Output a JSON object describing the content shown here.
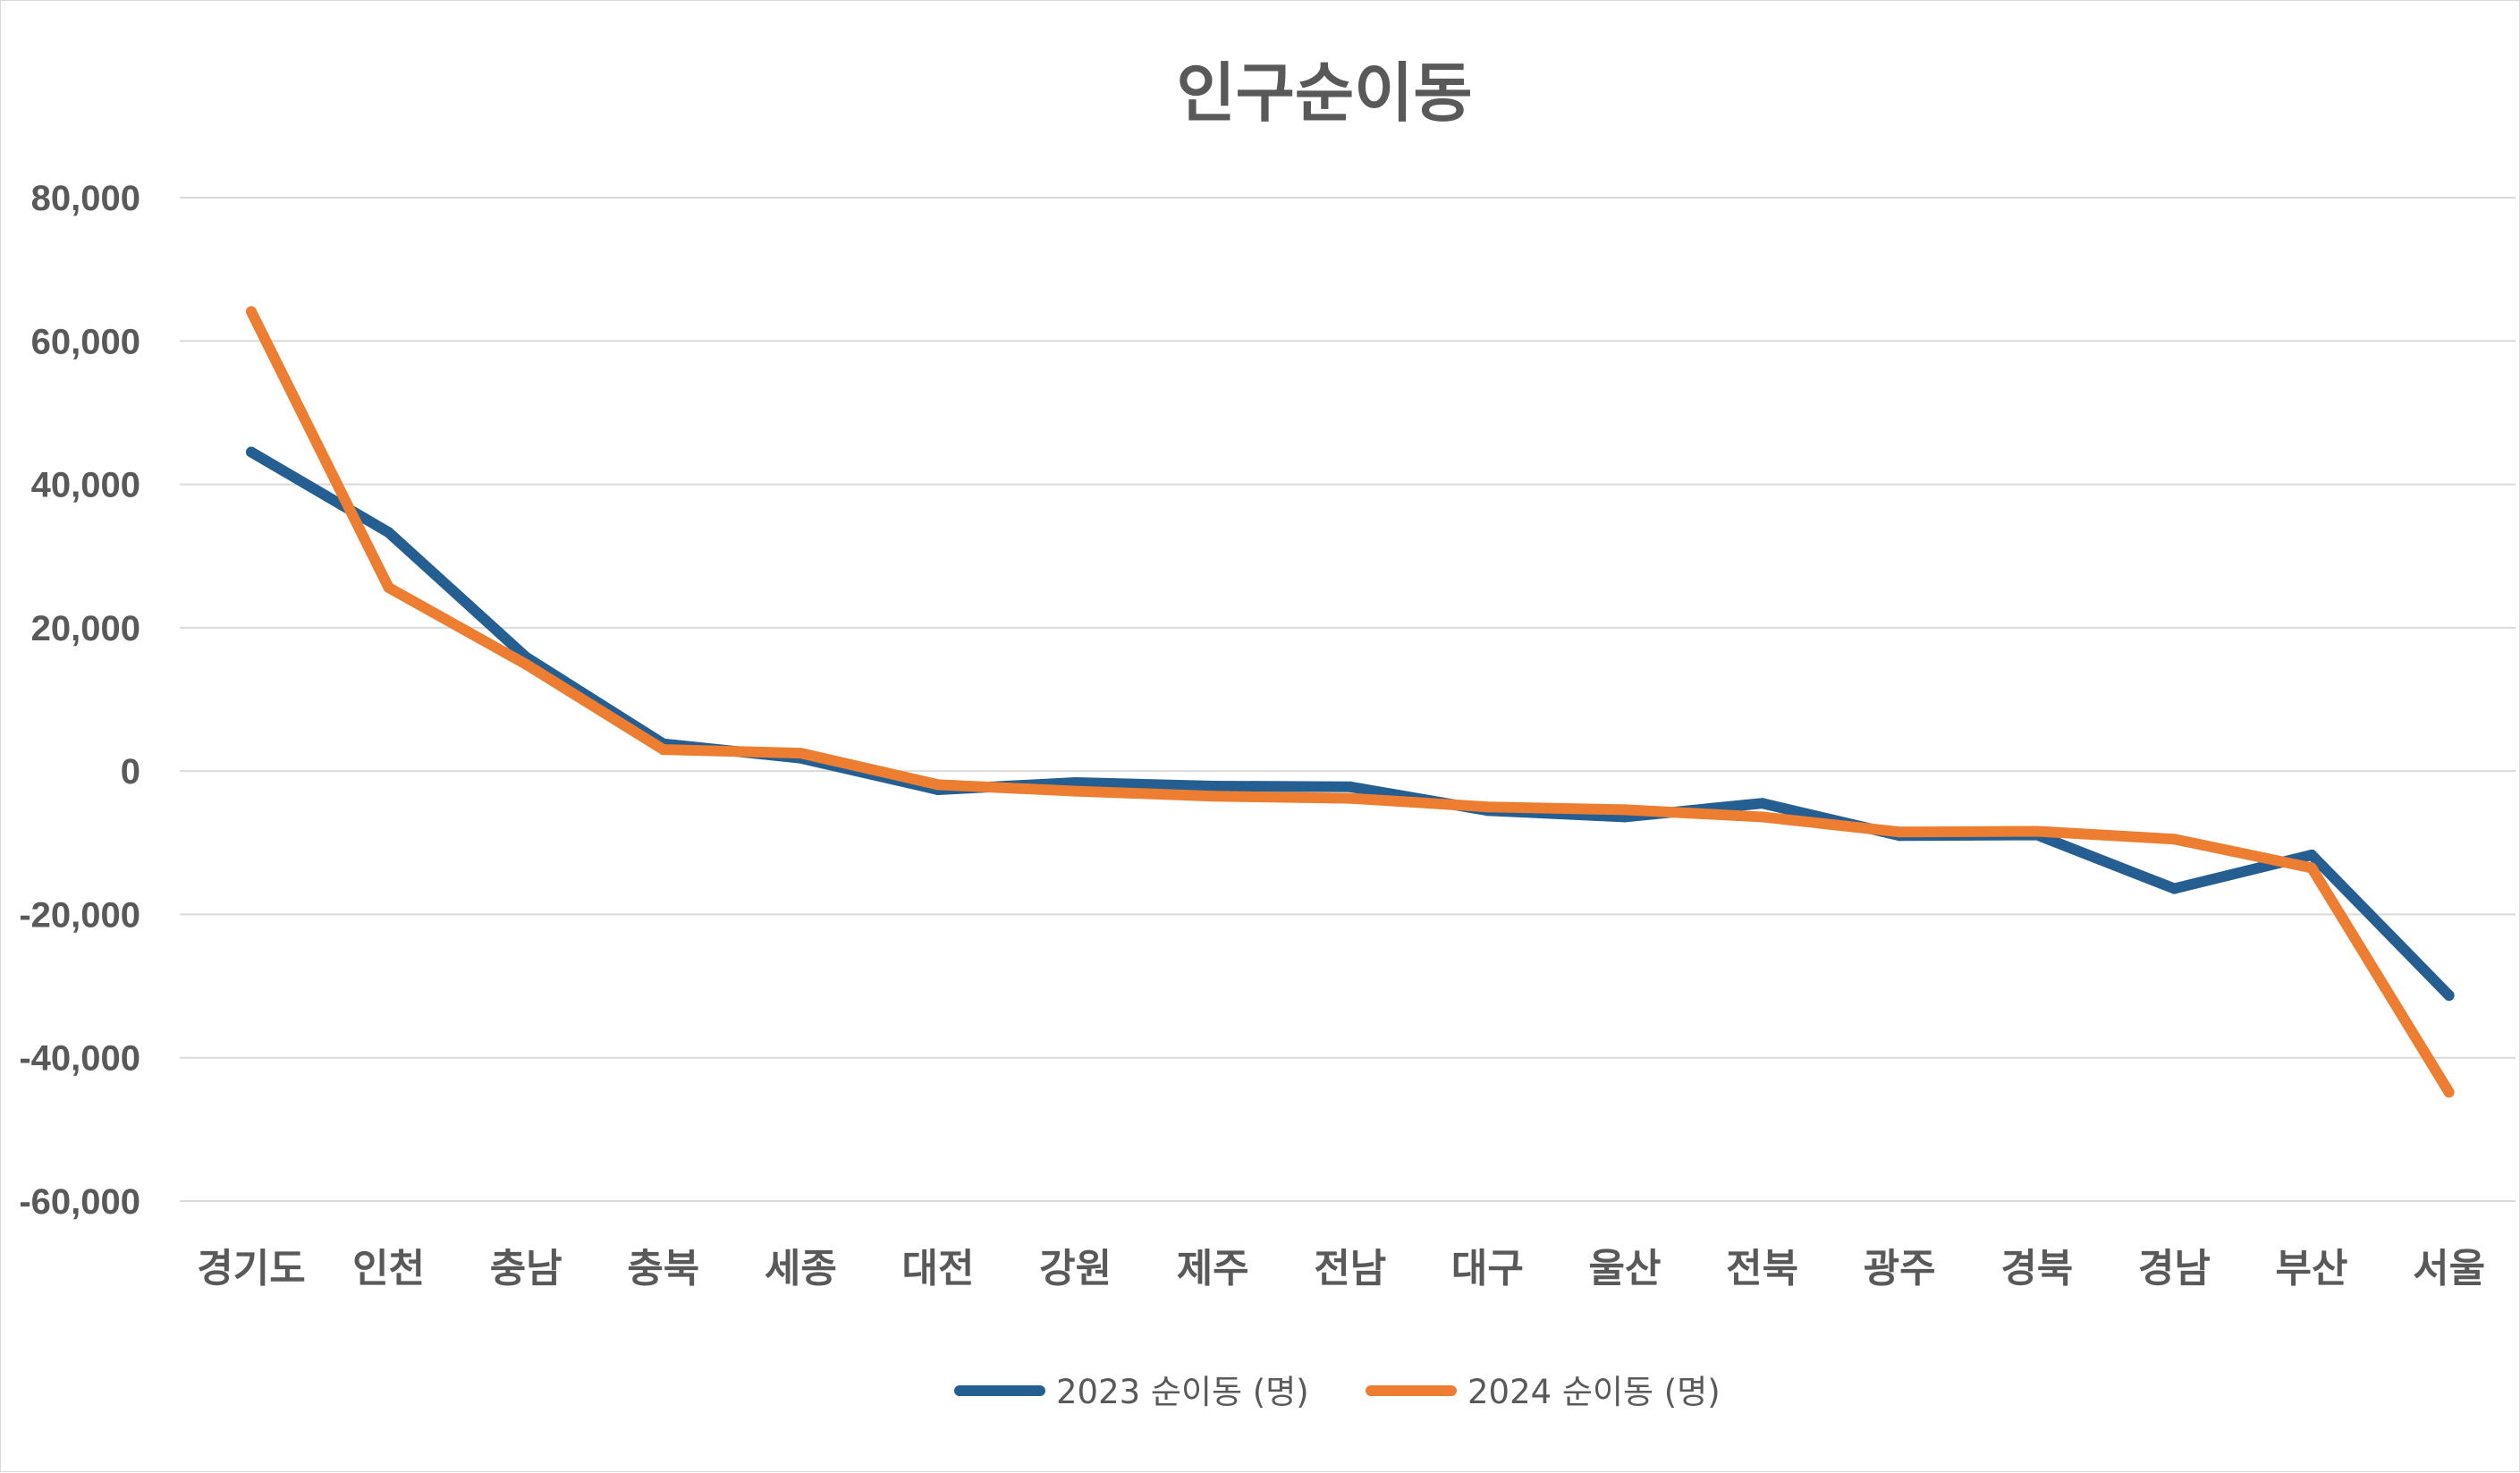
{
  "chart_data": {
    "type": "line",
    "title": "인구순이동",
    "xlabel": "",
    "ylabel": "",
    "ylim": [
      -60000,
      80000
    ],
    "yticks": [
      80000,
      60000,
      40000,
      20000,
      0,
      -20000,
      -40000,
      -60000
    ],
    "ytick_labels": [
      "80,000",
      "60,000",
      "40,000",
      "20,000",
      "0",
      "-20,000",
      "-40,000",
      "-60,000"
    ],
    "grid": true,
    "legend_position": "bottom",
    "categories": [
      "경기도",
      "인천",
      "충남",
      "충북",
      "세종",
      "대전",
      "강원",
      "제주",
      "전남",
      "대구",
      "울산",
      "전북",
      "광주",
      "경북",
      "경남",
      "부산",
      "서울"
    ],
    "series": [
      {
        "name": "2023 순이동 (명)",
        "color": "#255E91",
        "values": [
          44500,
          33300,
          15900,
          3800,
          1800,
          -2600,
          -1600,
          -2100,
          -2200,
          -5500,
          -6400,
          -4500,
          -9000,
          -8900,
          -16400,
          -11700,
          -31300
        ]
      },
      {
        "name": "2024 순이동 (명)",
        "color": "#ED7D31",
        "values": [
          64100,
          25600,
          14900,
          3000,
          2500,
          -1900,
          -2800,
          -3500,
          -3800,
          -5000,
          -5400,
          -6400,
          -8500,
          -8400,
          -9500,
          -13500,
          -44800
        ]
      }
    ]
  }
}
